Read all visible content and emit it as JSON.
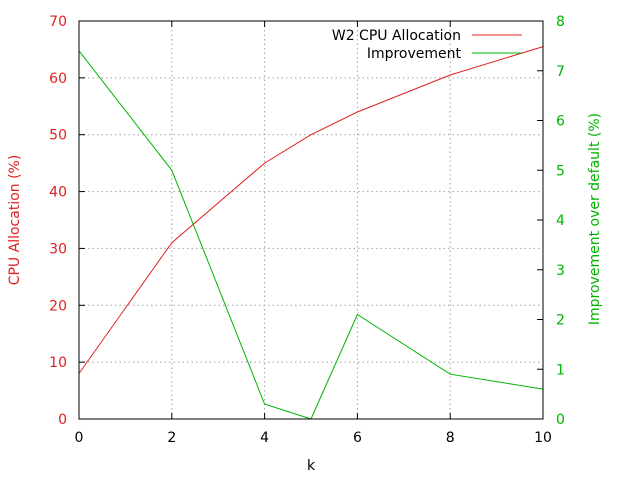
{
  "chart_data": {
    "type": "line",
    "xlabel": "k",
    "ylabel_left": "CPU Allocation (%)",
    "ylabel_right": "Improvement over default (%)",
    "xlim": [
      0,
      10
    ],
    "ylim_left": [
      0,
      70
    ],
    "ylim_right": [
      0,
      8
    ],
    "x_ticks": [
      "0",
      "2",
      "4",
      "6",
      "8",
      "10"
    ],
    "y_left_ticks": [
      "0",
      "10",
      "20",
      "30",
      "40",
      "50",
      "60",
      "70"
    ],
    "y_right_ticks": [
      "0",
      "1",
      "2",
      "3",
      "4",
      "5",
      "6",
      "7",
      "8"
    ],
    "grid": true,
    "legend_position": "top-right",
    "left_axis_color": "#e02020",
    "right_axis_color": "#00b400",
    "series": [
      {
        "name": "W2 CPU Allocation",
        "axis": "left",
        "color": "#e02020",
        "x": [
          0,
          2,
          4,
          5,
          6,
          8,
          10
        ],
        "y": [
          8,
          31,
          45,
          50,
          54,
          60.5,
          65.5
        ]
      },
      {
        "name": "Improvement",
        "axis": "right",
        "color": "#00b400",
        "x": [
          0,
          2,
          4,
          5,
          6,
          8,
          10
        ],
        "y": [
          7.4,
          5.0,
          0.3,
          0,
          2.1,
          0.9,
          0.6
        ]
      }
    ]
  }
}
